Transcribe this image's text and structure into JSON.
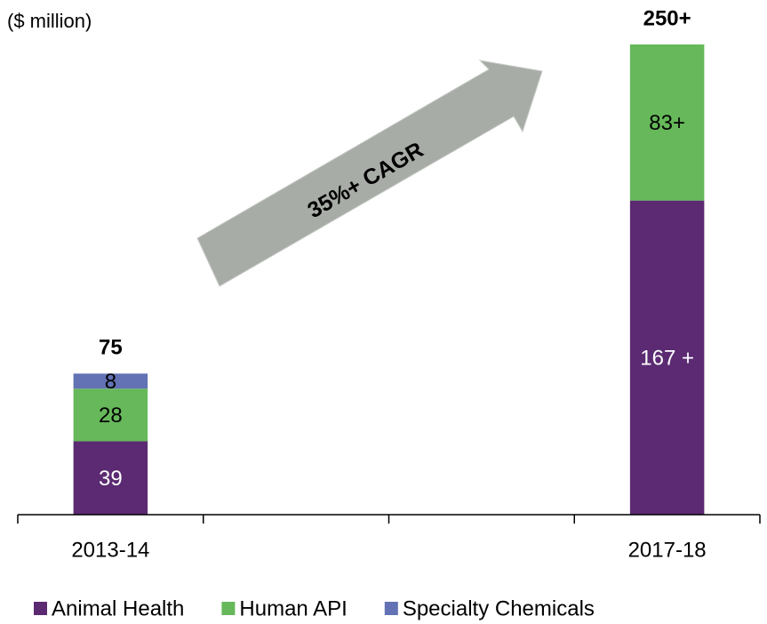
{
  "chart_data": {
    "type": "stacked_bar",
    "title": "($ million)",
    "categories": [
      "2013-14",
      null,
      null,
      "2017-18"
    ],
    "series": [
      {
        "name": "Animal Health",
        "color": "#5b2a72",
        "values": [
          39,
          null,
          null,
          167
        ],
        "value_labels": [
          "39",
          null,
          null,
          "167 +"
        ]
      },
      {
        "name": "Human API",
        "color": "#66b85a",
        "values": [
          28,
          null,
          null,
          83
        ],
        "value_labels": [
          "28",
          null,
          null,
          "83+"
        ]
      },
      {
        "name": "Specialty Chemicals",
        "color": "#6272b4",
        "values": [
          8,
          null,
          null,
          null
        ],
        "value_labels": [
          "8",
          null,
          null,
          null
        ]
      }
    ],
    "totals": [
      75,
      null,
      null,
      250
    ],
    "total_labels": [
      "75",
      null,
      null,
      "250+"
    ],
    "annotation": "35%+ CAGR",
    "ylim": [
      0,
      250
    ],
    "legend": "bottom"
  }
}
